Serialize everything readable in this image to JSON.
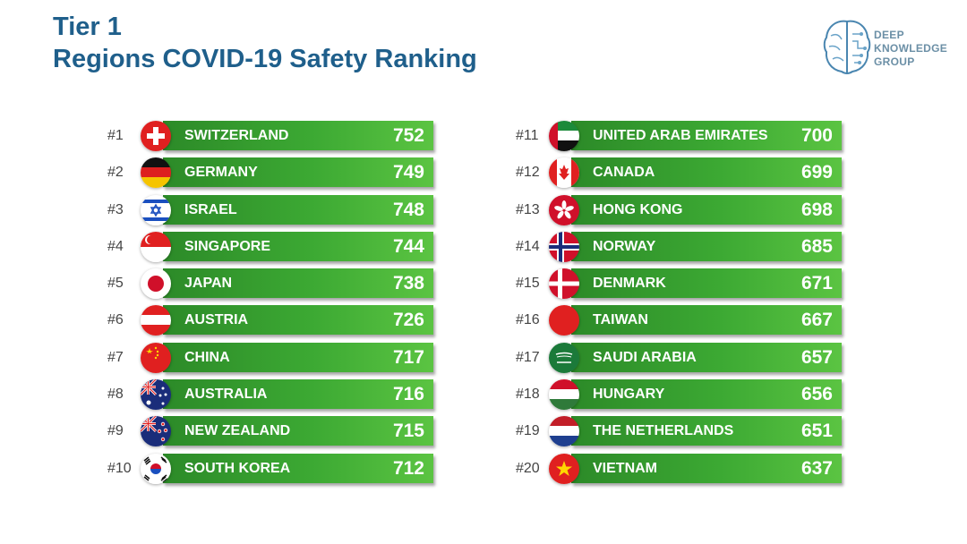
{
  "header": {
    "title_line1": "Tier 1",
    "title_line2": "Regions COVID-19 Safety Ranking",
    "title_color": "#1f5f8b"
  },
  "logo": {
    "lines": [
      "DEEP",
      "KNOWLEDGE",
      "GROUP"
    ],
    "icon": "brain-circuit-icon"
  },
  "bar_color": "#3ca933",
  "rankings_left": [
    {
      "rank": "#1",
      "country": "SWITZERLAND",
      "score": "752",
      "flag": "switzerland-flag-icon"
    },
    {
      "rank": "#2",
      "country": "GERMANY",
      "score": "749",
      "flag": "germany-flag-icon"
    },
    {
      "rank": "#3",
      "country": "ISRAEL",
      "score": "748",
      "flag": "israel-flag-icon"
    },
    {
      "rank": "#4",
      "country": "SINGAPORE",
      "score": "744",
      "flag": "singapore-flag-icon"
    },
    {
      "rank": "#5",
      "country": "JAPAN",
      "score": "738",
      "flag": "japan-flag-icon"
    },
    {
      "rank": "#6",
      "country": "AUSTRIA",
      "score": "726",
      "flag": "austria-flag-icon"
    },
    {
      "rank": "#7",
      "country": "CHINA",
      "score": "717",
      "flag": "china-flag-icon"
    },
    {
      "rank": "#8",
      "country": "AUSTRALIA",
      "score": "716",
      "flag": "australia-flag-icon"
    },
    {
      "rank": "#9",
      "country": "NEW ZEALAND",
      "score": "715",
      "flag": "new-zealand-flag-icon"
    },
    {
      "rank": "#10",
      "country": "SOUTH KOREA",
      "score": "712",
      "flag": "south-korea-flag-icon"
    }
  ],
  "rankings_right": [
    {
      "rank": "#11",
      "country": "UNITED ARAB EMIRATES",
      "score": "700",
      "flag": "uae-flag-icon"
    },
    {
      "rank": "#12",
      "country": "CANADA",
      "score": "699",
      "flag": "canada-flag-icon"
    },
    {
      "rank": "#13",
      "country": "HONG KONG",
      "score": "698",
      "flag": "hong-kong-flag-icon"
    },
    {
      "rank": "#14",
      "country": "NORWAY",
      "score": "685",
      "flag": "norway-flag-icon"
    },
    {
      "rank": "#15",
      "country": "DENMARK",
      "score": "671",
      "flag": "denmark-flag-icon"
    },
    {
      "rank": "#16",
      "country": "TAIWAN",
      "score": "667",
      "flag": "taiwan-flag-icon"
    },
    {
      "rank": "#17",
      "country": "SAUDI ARABIA",
      "score": "657",
      "flag": "saudi-arabia-flag-icon"
    },
    {
      "rank": "#18",
      "country": "HUNGARY",
      "score": "656",
      "flag": "hungary-flag-icon"
    },
    {
      "rank": "#19",
      "country": "THE NETHERLANDS",
      "score": "651",
      "flag": "netherlands-flag-icon"
    },
    {
      "rank": "#20",
      "country": "VIETNAM",
      "score": "637",
      "flag": "vietnam-flag-icon"
    }
  ]
}
